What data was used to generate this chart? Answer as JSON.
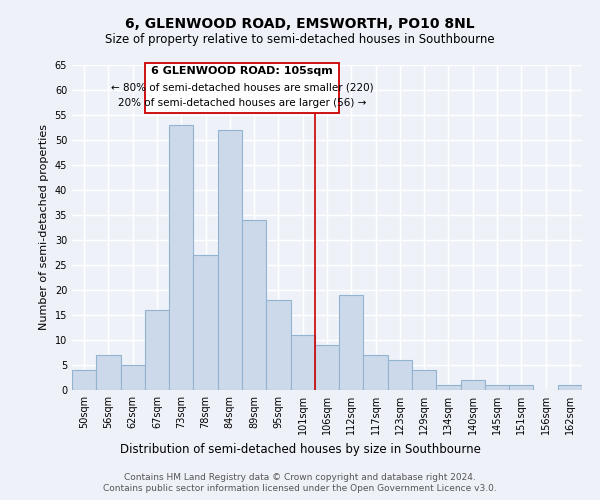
{
  "title": "6, GLENWOOD ROAD, EMSWORTH, PO10 8NL",
  "subtitle": "Size of property relative to semi-detached houses in Southbourne",
  "xlabel": "Distribution of semi-detached houses by size in Southbourne",
  "ylabel": "Number of semi-detached properties",
  "bar_labels": [
    "50sqm",
    "56sqm",
    "62sqm",
    "67sqm",
    "73sqm",
    "78sqm",
    "84sqm",
    "89sqm",
    "95sqm",
    "101sqm",
    "106sqm",
    "112sqm",
    "117sqm",
    "123sqm",
    "129sqm",
    "134sqm",
    "140sqm",
    "145sqm",
    "151sqm",
    "156sqm",
    "162sqm"
  ],
  "bar_values": [
    4,
    7,
    5,
    16,
    53,
    27,
    52,
    34,
    18,
    11,
    9,
    19,
    7,
    6,
    4,
    1,
    2,
    1,
    1,
    0,
    1
  ],
  "bar_color": "#ccd9ea",
  "bar_edge_color": "#92b4d0",
  "highlight_line_color": "#cc0000",
  "annotation_title": "6 GLENWOOD ROAD: 105sqm",
  "annotation_line1": "← 80% of semi-detached houses are smaller (220)",
  "annotation_line2": "20% of semi-detached houses are larger (56) →",
  "annotation_box_color": "#ffffff",
  "annotation_box_edge_color": "#cc0000",
  "ylim": [
    0,
    65
  ],
  "yticks": [
    0,
    5,
    10,
    15,
    20,
    25,
    30,
    35,
    40,
    45,
    50,
    55,
    60,
    65
  ],
  "footnote1": "Contains HM Land Registry data © Crown copyright and database right 2024.",
  "footnote2": "Contains public sector information licensed under the Open Government Licence v3.0.",
  "bg_color": "#eef2f8",
  "plot_bg_color": "#eef2f8",
  "grid_color": "#ffffff",
  "title_fontsize": 10,
  "subtitle_fontsize": 8.5,
  "ylabel_fontsize": 8,
  "xlabel_fontsize": 8.5,
  "tick_fontsize": 7,
  "annotation_title_fontsize": 8,
  "annotation_text_fontsize": 7.5,
  "footnote_fontsize": 6.5
}
